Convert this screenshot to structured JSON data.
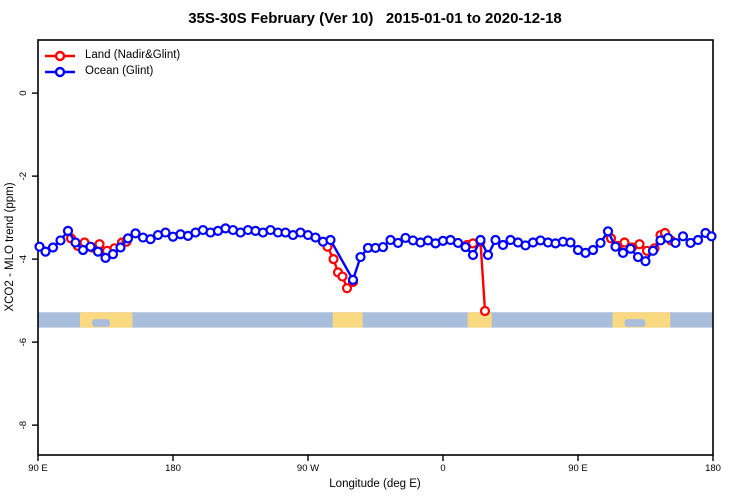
{
  "title": "35S-30S February (Ver 10)   2015-01-01 to 2020-12-18",
  "legend": {
    "items": [
      {
        "label": "Land (Nadir&Glint)",
        "color": "#ff0000"
      },
      {
        "label": "Ocean (Glint)",
        "color": "#0000ff"
      }
    ]
  },
  "chart_data": {
    "type": "line",
    "title": "35S-30S February (Ver 10)   2015-01-01 to 2020-12-18",
    "xlabel": "Longitude (deg E)",
    "ylabel": "XCO2 - MLO trend (ppm)",
    "xlim": [
      90,
      540
    ],
    "ylim": [
      -8.72,
      1.28
    ],
    "grid": "off",
    "legend_position": "top-left",
    "x_ticks": [
      {
        "value": 90,
        "label": "90 E"
      },
      {
        "value": 180,
        "label": "180"
      },
      {
        "value": 270,
        "label": "90 W"
      },
      {
        "value": 360,
        "label": "0"
      },
      {
        "value": 450,
        "label": "90 E"
      },
      {
        "value": 540,
        "label": "180"
      }
    ],
    "y_ticks": [
      {
        "value": 0,
        "label": "0"
      },
      {
        "value": -2,
        "label": "-2"
      },
      {
        "value": -4,
        "label": "-4"
      },
      {
        "value": -6,
        "label": "-6"
      },
      {
        "value": -8,
        "label": "-8"
      }
    ],
    "series": [
      {
        "name": "Land (Nadir&Glint)",
        "color": "#ff0000",
        "segments": [
          [
            [
              112,
              -3.5
            ],
            [
              116.5,
              -3.68
            ],
            [
              121,
              -3.6
            ],
            [
              126,
              -3.72
            ],
            [
              131,
              -3.64
            ],
            [
              136,
              -3.8
            ],
            [
              141,
              -3.74
            ],
            [
              146,
              -3.6
            ],
            [
              149,
              -3.58
            ]
          ],
          [
            [
              283,
              -3.7
            ],
            [
              287,
              -4.0
            ],
            [
              290,
              -4.32
            ],
            [
              293,
              -4.42
            ],
            [
              296,
              -4.7
            ],
            [
              300,
              -4.55
            ]
          ],
          [
            [
              376,
              -3.66
            ],
            [
              380,
              -3.62
            ],
            [
              385,
              -3.58
            ],
            [
              388,
              -5.25
            ]
          ],
          [
            [
              472,
              -3.5
            ],
            [
              476.5,
              -3.68
            ],
            [
              481,
              -3.6
            ],
            [
              486,
              -3.72
            ],
            [
              491,
              -3.64
            ],
            [
              496,
              -3.8
            ],
            [
              501,
              -3.74
            ],
            [
              505,
              -3.42
            ],
            [
              508,
              -3.37
            ],
            [
              512,
              -3.55
            ]
          ]
        ]
      },
      {
        "name": "Ocean (Glint)",
        "color": "#0000ff",
        "segments": [
          [
            [
              91,
              -3.7
            ],
            [
              95,
              -3.82
            ],
            [
              100,
              -3.72
            ],
            [
              105,
              -3.55
            ],
            [
              110,
              -3.32
            ],
            [
              115,
              -3.6
            ],
            [
              120,
              -3.78
            ],
            [
              125,
              -3.7
            ],
            [
              130,
              -3.82
            ],
            [
              135,
              -3.97
            ],
            [
              140,
              -3.88
            ],
            [
              145,
              -3.72
            ],
            [
              150,
              -3.5
            ],
            [
              155,
              -3.38
            ],
            [
              160,
              -3.48
            ],
            [
              165,
              -3.52
            ],
            [
              170,
              -3.42
            ],
            [
              175,
              -3.36
            ],
            [
              180,
              -3.46
            ],
            [
              185,
              -3.4
            ],
            [
              190,
              -3.44
            ],
            [
              195,
              -3.36
            ],
            [
              200,
              -3.3
            ],
            [
              205,
              -3.36
            ],
            [
              210,
              -3.32
            ],
            [
              215,
              -3.26
            ],
            [
              220,
              -3.3
            ],
            [
              225,
              -3.36
            ],
            [
              230,
              -3.3
            ],
            [
              235,
              -3.32
            ],
            [
              240,
              -3.36
            ],
            [
              245,
              -3.3
            ],
            [
              250,
              -3.36
            ],
            [
              255,
              -3.36
            ],
            [
              260,
              -3.42
            ],
            [
              265,
              -3.36
            ],
            [
              270,
              -3.42
            ],
            [
              275,
              -3.48
            ],
            [
              280,
              -3.58
            ],
            [
              285,
              -3.54
            ],
            [
              300,
              -4.5
            ],
            [
              305,
              -3.95
            ],
            [
              310,
              -3.73
            ],
            [
              315,
              -3.73
            ],
            [
              320,
              -3.71
            ],
            [
              325,
              -3.54
            ],
            [
              330,
              -3.61
            ],
            [
              335,
              -3.49
            ],
            [
              340,
              -3.55
            ],
            [
              345,
              -3.6
            ],
            [
              350,
              -3.55
            ],
            [
              355,
              -3.62
            ],
            [
              360,
              -3.56
            ],
            [
              365,
              -3.54
            ],
            [
              370,
              -3.61
            ],
            [
              375,
              -3.71
            ],
            [
              380,
              -3.9
            ],
            [
              385,
              -3.54
            ],
            [
              390,
              -3.9
            ],
            [
              395,
              -3.54
            ],
            [
              400,
              -3.66
            ],
            [
              405,
              -3.54
            ],
            [
              410,
              -3.6
            ],
            [
              415,
              -3.67
            ],
            [
              420,
              -3.6
            ],
            [
              425,
              -3.55
            ],
            [
              430,
              -3.6
            ],
            [
              435,
              -3.62
            ],
            [
              440,
              -3.58
            ],
            [
              445,
              -3.6
            ],
            [
              450,
              -3.78
            ],
            [
              455,
              -3.85
            ],
            [
              460,
              -3.78
            ],
            [
              465,
              -3.61
            ],
            [
              470,
              -3.33
            ],
            [
              475,
              -3.7
            ],
            [
              480,
              -3.85
            ],
            [
              485,
              -3.75
            ],
            [
              490,
              -3.95
            ],
            [
              495,
              -4.05
            ],
            [
              500,
              -3.8
            ],
            [
              505,
              -3.55
            ],
            [
              510,
              -3.49
            ],
            [
              515,
              -3.61
            ],
            [
              520,
              -3.45
            ],
            [
              525,
              -3.61
            ],
            [
              530,
              -3.54
            ],
            [
              535,
              -3.37
            ],
            [
              539,
              -3.45
            ]
          ]
        ]
      }
    ],
    "land_ocean_strip": {
      "ocean_color": "#a9bedb",
      "land_color": "#fbd981",
      "val_top": -5.28,
      "val_bottom": -5.65,
      "land_lon_ranges": [
        [
          118,
          153
        ],
        [
          286.5,
          306.5
        ],
        [
          376.5,
          392.5
        ],
        [
          473,
          511.5
        ]
      ],
      "lake_lon_ranges": [
        [
          126,
          138
        ],
        [
          481,
          495
        ]
      ]
    }
  }
}
